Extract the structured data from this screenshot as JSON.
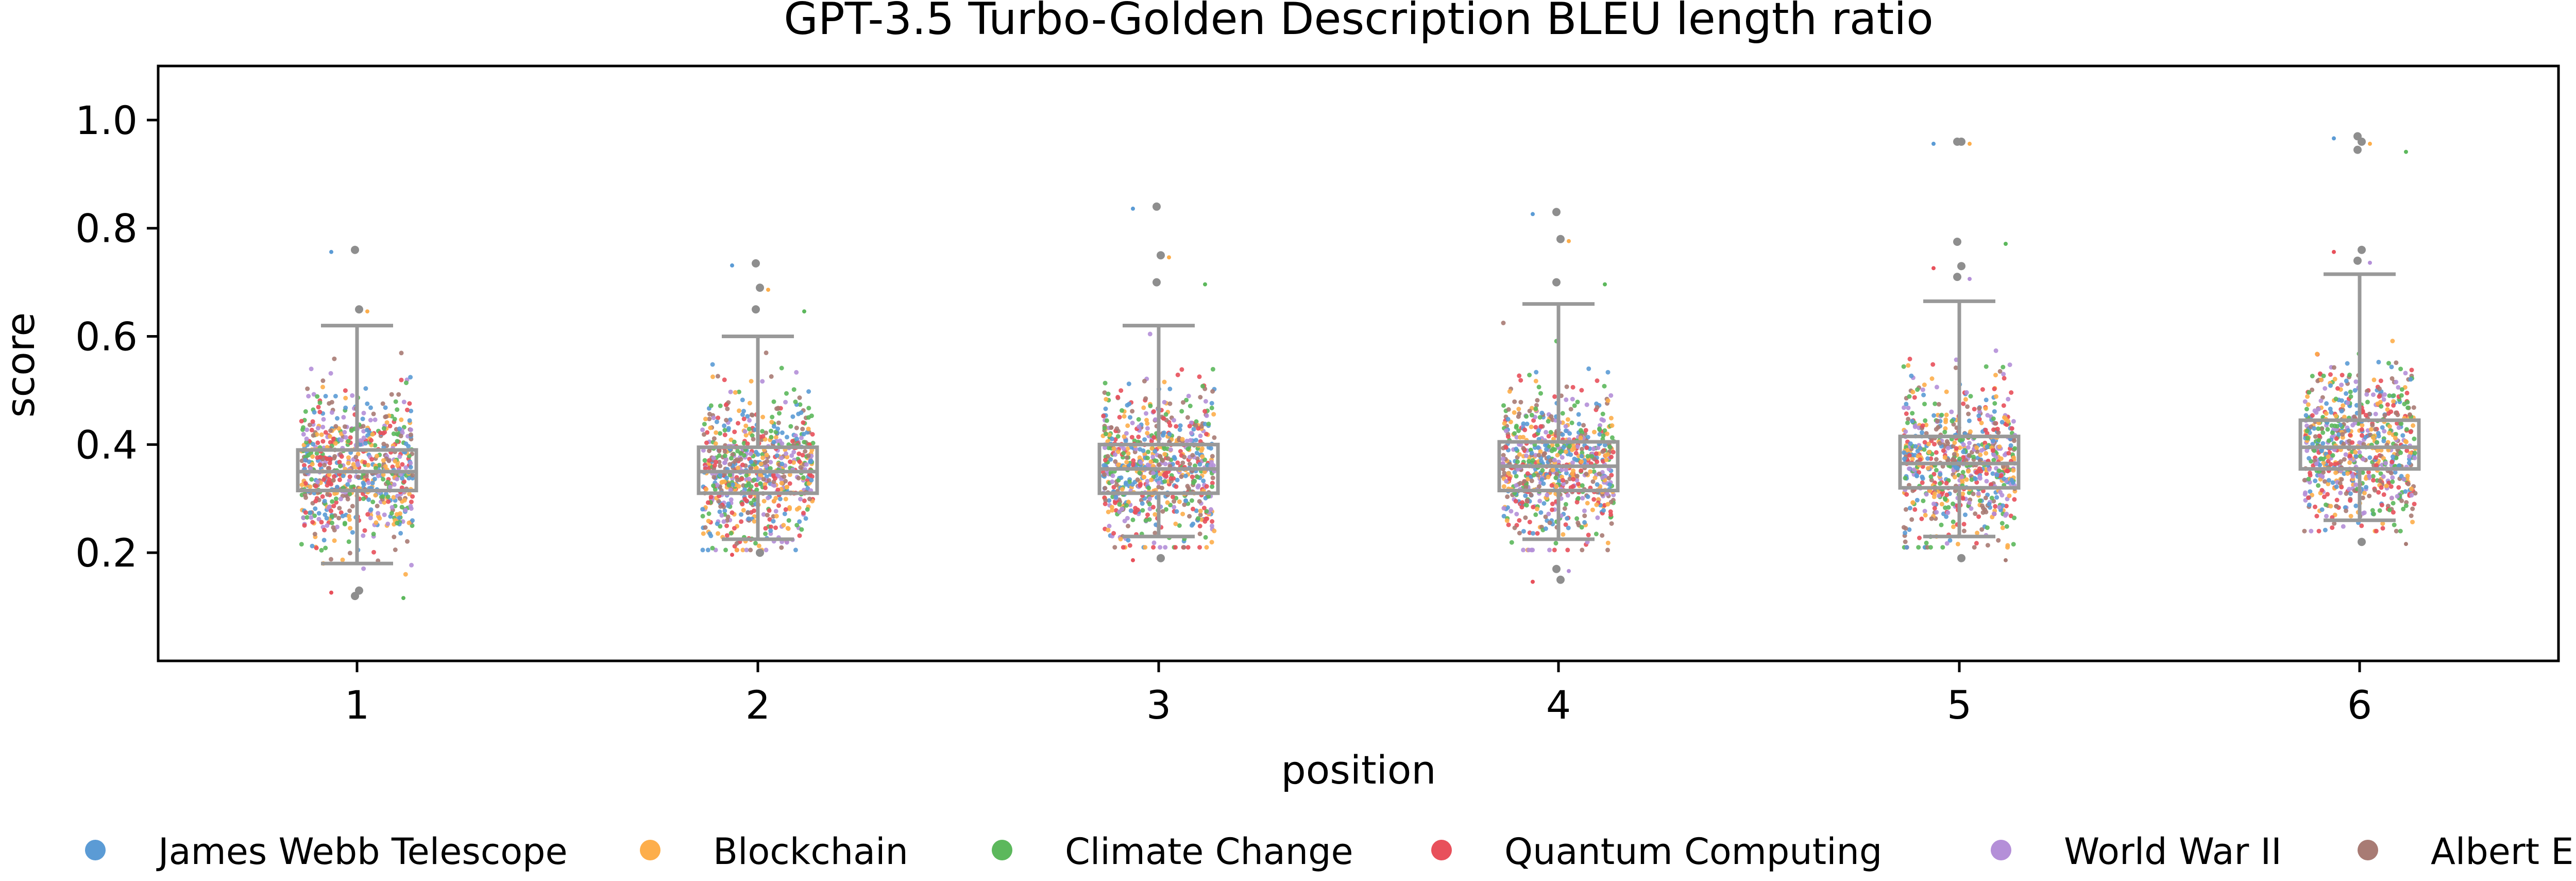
{
  "chart_data": {
    "type": "box-strip",
    "title": "GPT-3.5 Turbo-Golden Description BLEU length ratio",
    "xlabel": "position",
    "ylabel": "score",
    "categories": [
      "1",
      "2",
      "3",
      "4",
      "5",
      "6"
    ],
    "ylim": [
      0.0,
      1.1
    ],
    "yticks": [
      0.2,
      0.4,
      0.6,
      0.8,
      1.0
    ],
    "ytick_labels": [
      "0.2",
      "0.4",
      "0.6",
      "0.8",
      "1.0"
    ],
    "grid": false,
    "legend_placement": "bottom",
    "box_color": "#999999",
    "boxes": [
      {
        "position": "1",
        "q1": 0.315,
        "median": 0.35,
        "q3": 0.39,
        "whisker_low": 0.18,
        "whisker_high": 0.62,
        "min": 0.11,
        "max": 0.76
      },
      {
        "position": "2",
        "q1": 0.31,
        "median": 0.35,
        "q3": 0.395,
        "whisker_low": 0.225,
        "whisker_high": 0.6,
        "min": 0.19,
        "max": 0.735
      },
      {
        "position": "3",
        "q1": 0.31,
        "median": 0.355,
        "q3": 0.4,
        "whisker_low": 0.23,
        "whisker_high": 0.62,
        "min": 0.18,
        "max": 0.84
      },
      {
        "position": "4",
        "q1": 0.315,
        "median": 0.36,
        "q3": 0.405,
        "whisker_low": 0.225,
        "whisker_high": 0.66,
        "min": 0.14,
        "max": 0.83
      },
      {
        "position": "5",
        "q1": 0.32,
        "median": 0.365,
        "q3": 0.415,
        "whisker_low": 0.23,
        "whisker_high": 0.665,
        "min": 0.185,
        "max": 0.96
      },
      {
        "position": "6",
        "q1": 0.355,
        "median": 0.395,
        "q3": 0.445,
        "whisker_low": 0.26,
        "whisker_high": 0.715,
        "min": 0.215,
        "max": 0.97
      }
    ],
    "series": [
      {
        "name": "James Webb Telescope",
        "color": "#5b9bd5"
      },
      {
        "name": "Blockchain",
        "color": "#fdae4b"
      },
      {
        "name": "Climate Change",
        "color": "#5cb85c"
      },
      {
        "name": "Quantum Computing",
        "color": "#e8505b"
      },
      {
        "name": "World War II",
        "color": "#b48fd8"
      },
      {
        "name": "Albert Einstein",
        "color": "#a87b74"
      }
    ],
    "points_per_position": 700,
    "point_spread_sd": 0.07,
    "outliers": [
      {
        "position": "1",
        "values": [
          0.76,
          0.65,
          0.12,
          0.13
        ]
      },
      {
        "position": "2",
        "values": [
          0.735,
          0.69,
          0.65,
          0.2
        ]
      },
      {
        "position": "3",
        "values": [
          0.84,
          0.75,
          0.7,
          0.19
        ]
      },
      {
        "position": "4",
        "values": [
          0.83,
          0.78,
          0.7,
          0.15,
          0.17
        ]
      },
      {
        "position": "5",
        "values": [
          0.96,
          0.96,
          0.775,
          0.73,
          0.71,
          0.19
        ]
      },
      {
        "position": "6",
        "values": [
          0.97,
          0.96,
          0.945,
          0.76,
          0.74,
          0.22
        ]
      }
    ]
  }
}
